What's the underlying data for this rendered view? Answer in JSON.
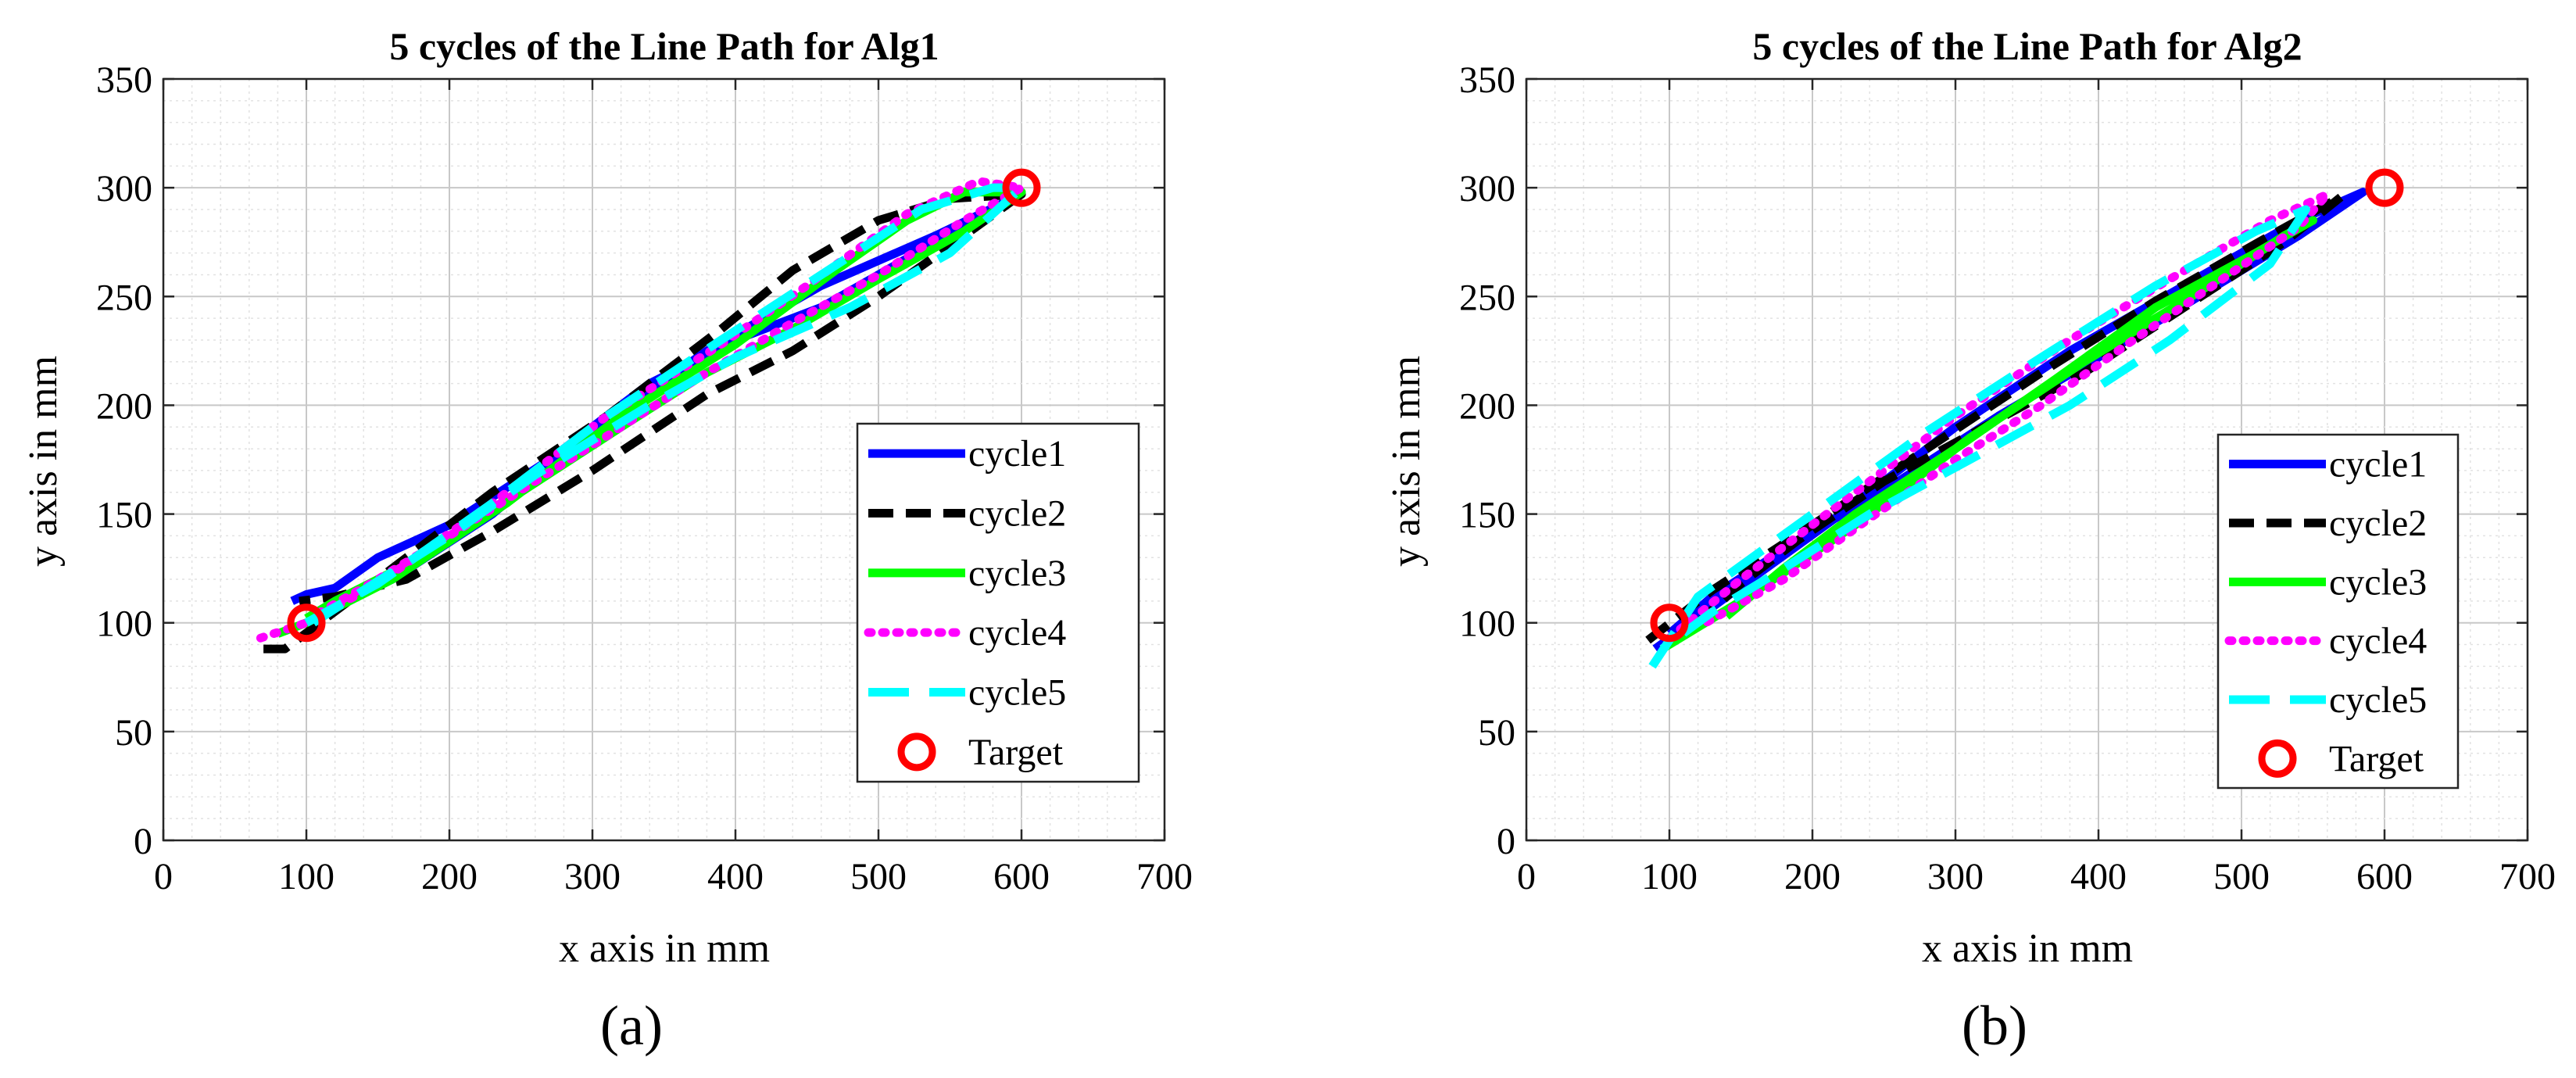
{
  "colors": {
    "cycle1": "#0000ff",
    "cycle2": "#000000",
    "cycle3": "#00ff00",
    "cycle4": "#ff00ff",
    "cycle5": "#00ffff",
    "target": "#ff0000"
  },
  "chart_data": [
    {
      "type": "line",
      "title": "5 cycles of the Line Path for Alg1",
      "xlabel": "x axis in mm",
      "ylabel": "y axis in mm",
      "panel_label": "(a)",
      "xlim": [
        0,
        700
      ],
      "ylim": [
        0,
        350
      ],
      "xticks": [
        0,
        100,
        200,
        300,
        400,
        500,
        600,
        700
      ],
      "yticks": [
        0,
        50,
        100,
        150,
        200,
        250,
        300,
        350
      ],
      "grid": true,
      "legend_position": "bottom-right",
      "series": [
        {
          "name": "cycle1",
          "style": "solid",
          "x": [
            105,
            160,
            230,
            300,
            380,
            460,
            540,
            600,
            540,
            460,
            400,
            340,
            270,
            200,
            150,
            120,
            100,
            90
          ],
          "y": [
            102,
            120,
            150,
            188,
            225,
            255,
            278,
            297,
            275,
            245,
            230,
            210,
            175,
            145,
            130,
            116,
            113,
            110
          ]
        },
        {
          "name": "cycle2",
          "style": "dash",
          "x": [
            70,
            85,
            150,
            230,
            310,
            390,
            440,
            500,
            550,
            600,
            560,
            500,
            440,
            380,
            300,
            230,
            170,
            120,
            95
          ],
          "y": [
            88,
            88,
            120,
            160,
            195,
            235,
            262,
            285,
            295,
            297,
            278,
            250,
            225,
            205,
            170,
            142,
            120,
            112,
            110
          ]
        },
        {
          "name": "cycle3",
          "style": "solid",
          "x": [
            80,
            100,
            160,
            240,
            320,
            400,
            470,
            520,
            560,
            600,
            560,
            500,
            440,
            380,
            320,
            250,
            180,
            120,
            100
          ],
          "y": [
            95,
            100,
            120,
            155,
            195,
            228,
            262,
            285,
            298,
            298,
            280,
            258,
            235,
            215,
            190,
            160,
            130,
            110,
            102
          ]
        },
        {
          "name": "cycle4",
          "style": "dot",
          "x": [
            68,
            100,
            150,
            230,
            310,
            390,
            450,
            520,
            570,
            600,
            560,
            500,
            440,
            380,
            320,
            260,
            200,
            150,
            110
          ],
          "y": [
            93,
            100,
            118,
            155,
            195,
            228,
            255,
            288,
            303,
            300,
            285,
            260,
            238,
            215,
            190,
            165,
            140,
            120,
            105
          ]
        },
        {
          "name": "cycle5",
          "style": "longdash",
          "x": [
            100,
            150,
            230,
            310,
            390,
            460,
            530,
            580,
            600,
            550,
            480,
            400,
            340,
            260,
            200,
            140,
            105
          ],
          "y": [
            100,
            118,
            155,
            195,
            230,
            260,
            290,
            300,
            300,
            270,
            245,
            222,
            200,
            168,
            140,
            115,
            100
          ]
        }
      ],
      "targets": {
        "name": "Target",
        "x": [
          100,
          600
        ],
        "y": [
          100,
          300
        ]
      }
    },
    {
      "type": "line",
      "title": "5 cycles of the Line Path for Alg2",
      "xlabel": "x axis in mm",
      "ylabel": "y axis in mm",
      "panel_label": "(b)",
      "xlim": [
        0,
        700
      ],
      "ylim": [
        0,
        350
      ],
      "xticks": [
        0,
        100,
        200,
        300,
        400,
        500,
        600,
        700
      ],
      "yticks": [
        0,
        50,
        100,
        150,
        200,
        250,
        300,
        350
      ],
      "grid": true,
      "legend_position": "bottom-right",
      "series": [
        {
          "name": "cycle1",
          "style": "solid",
          "x": [
            90,
            140,
            220,
            300,
            380,
            460,
            540,
            585,
            540,
            470,
            400,
            330,
            260,
            190,
            130,
            100
          ],
          "y": [
            88,
            112,
            150,
            190,
            225,
            255,
            285,
            298,
            278,
            250,
            222,
            195,
            165,
            138,
            112,
            95
          ]
        },
        {
          "name": "cycle2",
          "style": "dash",
          "x": [
            85,
            130,
            200,
            280,
            360,
            440,
            520,
            570,
            530,
            460,
            390,
            320,
            250,
            190,
            150,
            120
          ],
          "y": [
            92,
            115,
            145,
            180,
            215,
            248,
            278,
            296,
            275,
            245,
            215,
            190,
            165,
            138,
            118,
            100
          ]
        },
        {
          "name": "cycle3",
          "style": "solid",
          "x": [
            95,
            150,
            230,
            310,
            390,
            470,
            530,
            550,
            510,
            440,
            370,
            300,
            230,
            180,
            140
          ],
          "y": [
            88,
            110,
            145,
            185,
            220,
            252,
            278,
            285,
            270,
            245,
            212,
            180,
            150,
            125,
            103
          ]
        },
        {
          "name": "cycle4",
          "style": "dot",
          "x": [
            100,
            150,
            230,
            300,
            380,
            450,
            520,
            560,
            540,
            480,
            420,
            360,
            300,
            240,
            180,
            120
          ],
          "y": [
            93,
            120,
            160,
            195,
            230,
            258,
            285,
            297,
            282,
            255,
            228,
            200,
            175,
            148,
            120,
            98
          ]
        },
        {
          "name": "cycle5",
          "style": "longdash",
          "x": [
            88,
            120,
            200,
            280,
            360,
            440,
            510,
            545,
            520,
            450,
            380,
            310,
            240,
            180,
            130,
            95
          ],
          "y": [
            80,
            112,
            150,
            188,
            222,
            255,
            280,
            290,
            265,
            230,
            200,
            175,
            150,
            125,
            105,
            88
          ]
        }
      ],
      "targets": {
        "name": "Target",
        "x": [
          100,
          600
        ],
        "y": [
          100,
          300
        ]
      }
    }
  ]
}
